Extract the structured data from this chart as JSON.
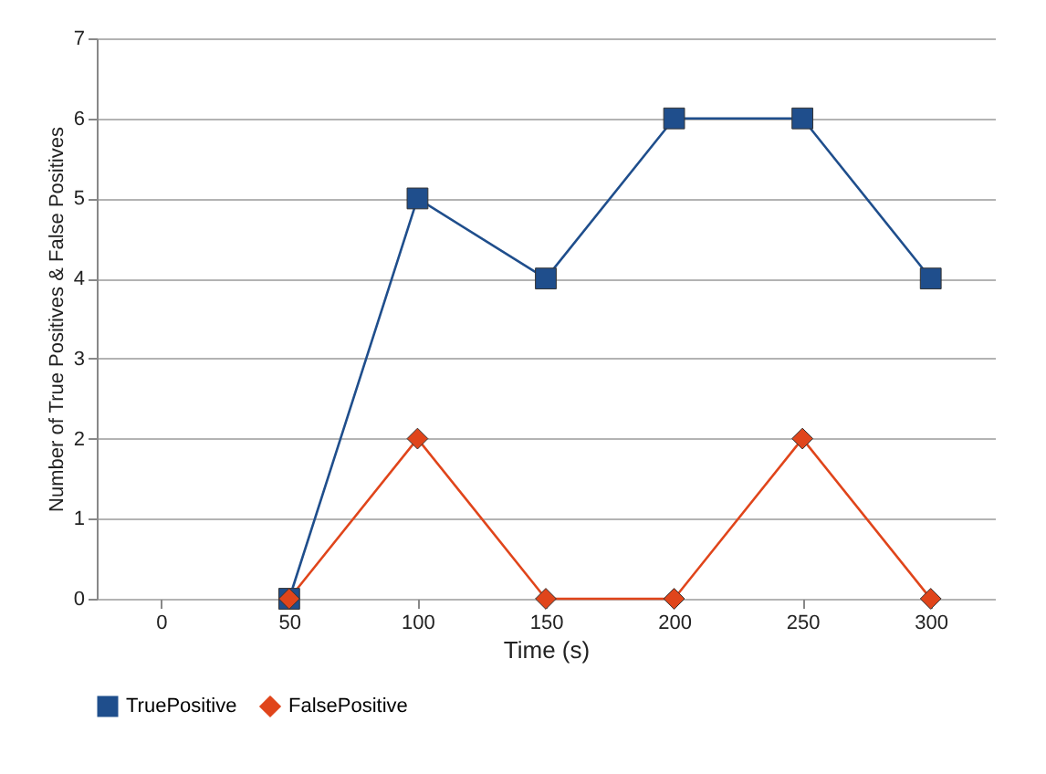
{
  "chart_data": {
    "type": "line",
    "xlabel": "Time (s)",
    "ylabel": "Number of True Positives & False Positives",
    "x": [
      50,
      100,
      150,
      200,
      250,
      300
    ],
    "series": [
      {
        "name": "TruePositive",
        "color": "#1f4e8c",
        "marker": "square",
        "values": [
          0,
          5,
          4,
          6,
          6,
          4
        ]
      },
      {
        "name": "FalsePositive",
        "color": "#e0451b",
        "marker": "diamond",
        "values": [
          0,
          2,
          0,
          0,
          2,
          0
        ]
      }
    ],
    "xlim": [
      -25,
      325
    ],
    "xticks": [
      0,
      50,
      100,
      150,
      200,
      250,
      300
    ],
    "ylim": [
      0,
      7
    ],
    "yticks": [
      0,
      1,
      2,
      3,
      4,
      5,
      6,
      7
    ],
    "grid": "y",
    "legend": "bottom",
    "line_style": "solid"
  }
}
